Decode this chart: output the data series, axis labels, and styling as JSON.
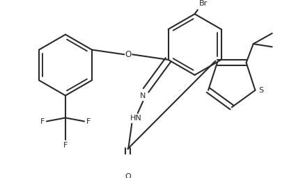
{
  "bg_color": "#ffffff",
  "line_color": "#2a2a2a",
  "line_width": 1.5,
  "figsize": [
    4.25,
    2.56
  ],
  "dpi": 100,
  "xlim": [
    0,
    4.25
  ],
  "ylim": [
    0,
    2.56
  ]
}
